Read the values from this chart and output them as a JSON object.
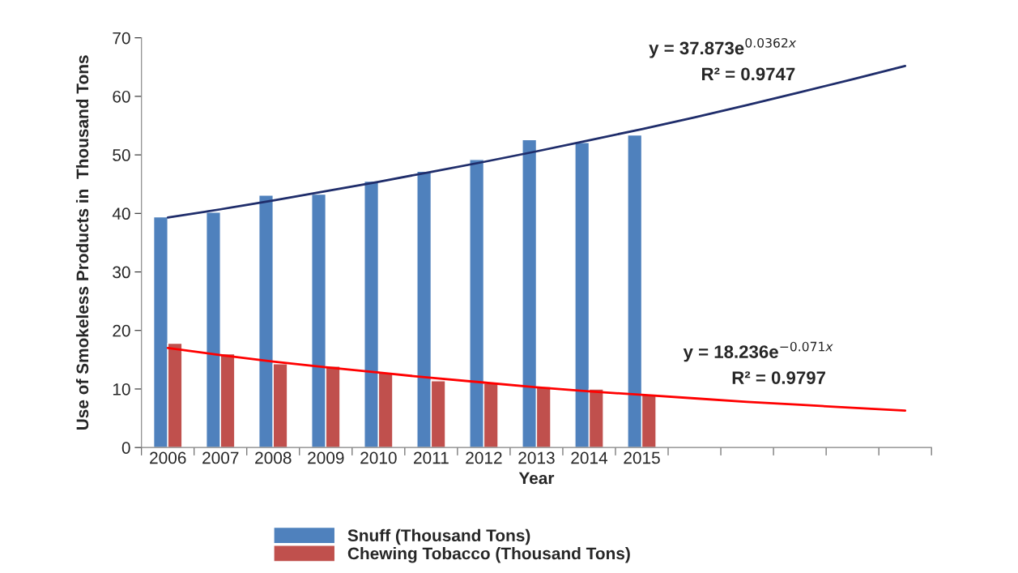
{
  "chart_data": {
    "type": "bar",
    "categories": [
      "2006",
      "2007",
      "2008",
      "2009",
      "2010",
      "2011",
      "2012",
      "2013",
      "2014",
      "2015",
      null,
      null,
      null,
      null,
      null
    ],
    "xlabel": "Year",
    "ylabel": "Use of Smokeless Products in  Thousand Tons",
    "ylim": [
      0,
      70
    ],
    "yticks": [
      0,
      10,
      20,
      30,
      40,
      50,
      60,
      70
    ],
    "series": [
      {
        "name": "Snuff (Thousand Tons)",
        "color": "#4f81bd",
        "values": [
          39.4,
          40.2,
          43.1,
          43.3,
          45.5,
          47.2,
          49.2,
          52.6,
          52.1,
          53.4,
          null,
          null,
          null,
          null,
          null
        ]
      },
      {
        "name": "Chewing Tobacco (Thousand Tons)",
        "color": "#c0504d",
        "values": [
          17.8,
          16.0,
          14.3,
          13.9,
          12.8,
          11.4,
          11.0,
          10.4,
          10.0,
          9.0,
          null,
          null,
          null,
          null,
          null
        ]
      },
      {
        "type": "line",
        "color": "#1f2d6b",
        "values": [
          39.3,
          40.7,
          42.2,
          43.8,
          45.4,
          47.1,
          48.8,
          50.6,
          52.5,
          54.4,
          56.4,
          58.5,
          60.7,
          62.9,
          65.2
        ]
      },
      {
        "type": "line",
        "color": "#ff0000",
        "values": [
          17.0,
          15.8,
          14.7,
          13.7,
          12.8,
          11.9,
          11.1,
          10.3,
          9.6,
          9.0,
          8.4,
          7.8,
          7.3,
          6.8,
          6.3
        ]
      }
    ],
    "annotations": [
      "y = 37.873e$^{0.0362x}$",
      "R² = 0.9747",
      "y = 18.236e$^{−0.071x}$",
      "R² = 0.9797"
    ],
    "legend": "bottom",
    "grid": false
  }
}
